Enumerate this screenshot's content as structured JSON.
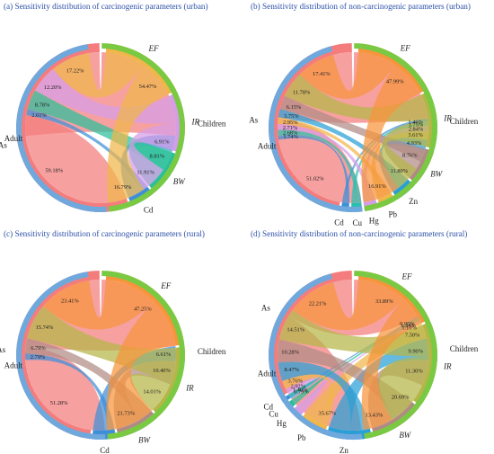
{
  "chart_data": [
    {
      "type": "chord",
      "title": "(a) Sensitivity distribution of carcinogenic parameters (urban)",
      "groups": [
        "Children",
        "Adult"
      ],
      "params": [
        {
          "name": "As",
          "italic": false,
          "color": "#f47c7c"
        },
        {
          "name": "Cd",
          "italic": false,
          "color": "#3d8fd8"
        },
        {
          "name": "BW",
          "italic": true,
          "color": "#2bbf9a"
        },
        {
          "name": "IR",
          "italic": true,
          "color": "#d59ce8"
        },
        {
          "name": "EF",
          "italic": true,
          "color": "#f0b64a"
        }
      ],
      "values": {
        "Children": [
          54.47,
          6.91,
          8.81,
          11.91,
          16.79
        ],
        "Adult": [
          59.18,
          2.61,
          8.78,
          12.2,
          17.22
        ]
      },
      "labels": {
        "Children": [
          "54.47%",
          "6.91%",
          "8.81%",
          "11.91%",
          "16.79%"
        ],
        "Adult": [
          "59.18%",
          "2.61%",
          "8.78%",
          "12.20%",
          "17.22%"
        ]
      }
    },
    {
      "type": "chord",
      "title": "(b) Sensitivity distribution of non-carcinogenic parameters (urban)",
      "groups": [
        "Children",
        "Adult"
      ],
      "params": [
        {
          "name": "As",
          "italic": false,
          "color": "#f47c7c"
        },
        {
          "name": "Cd",
          "italic": false,
          "color": "#3d8fd8"
        },
        {
          "name": "Cu",
          "italic": false,
          "color": "#2bbfb0"
        },
        {
          "name": "Hg",
          "italic": false,
          "color": "#d59ce8"
        },
        {
          "name": "Pb",
          "italic": false,
          "color": "#f0b64a"
        },
        {
          "name": "Zn",
          "italic": false,
          "color": "#2a9fd6"
        },
        {
          "name": "BW",
          "italic": true,
          "color": "#b08a84"
        },
        {
          "name": "IR",
          "italic": true,
          "color": "#b5b548"
        },
        {
          "name": "EF",
          "italic": true,
          "color": "#f7943c"
        }
      ],
      "values": {
        "Children": [
          47.99,
          1.46,
          1.75,
          2.84,
          3.61,
          4.93,
          8.76,
          11.8,
          16.91
        ],
        "Adult": [
          51.02,
          1.74,
          2.68,
          2.71,
          2.95,
          3.75,
          6.15,
          11.78,
          17.41
        ]
      },
      "labels": {
        "Children": [
          "47.99%",
          "1.46%",
          "1.75%",
          "2.84%",
          "3.61%",
          "4.93%",
          "8.76%",
          "11.80%",
          "16.91%"
        ],
        "Adult": [
          "51.02%",
          "1.74%",
          "2.68%",
          "2.71%",
          "2.95%",
          "3.75%",
          "6.15%",
          "11.78%",
          "17.41%"
        ]
      }
    },
    {
      "type": "chord",
      "title": "(c) Sensitivity distribution of carcinogenic parameters (rural)",
      "groups": [
        "Children",
        "Adult"
      ],
      "params": [
        {
          "name": "As",
          "italic": false,
          "color": "#f47c7c"
        },
        {
          "name": "Cd",
          "italic": false,
          "color": "#3d8fd8"
        },
        {
          "name": "BW",
          "italic": true,
          "color": "#b08a84"
        },
        {
          "name": "IR",
          "italic": true,
          "color": "#b5b548"
        },
        {
          "name": "EF",
          "italic": true,
          "color": "#f7943c"
        }
      ],
      "values": {
        "Children": [
          47.25,
          6.61,
          10.4,
          14.01,
          21.73
        ],
        "Adult": [
          51.28,
          2.79,
          6.79,
          15.74,
          23.41
        ]
      },
      "labels": {
        "Children": [
          "47.25%",
          "6.61%",
          "10.40%",
          "14.01%",
          "21.73%"
        ],
        "Adult": [
          "51.28%",
          "2.79%",
          "6.79%",
          "15.74%",
          "23.41%"
        ]
      }
    },
    {
      "type": "chord",
      "title": "(d) Sensitivity distribution of non-carcinogenic parameters (rural)",
      "groups": [
        "Children",
        "Adult"
      ],
      "params": [
        {
          "name": "As",
          "italic": false,
          "color": "#f47c7c"
        },
        {
          "name": "Cd",
          "italic": false,
          "color": "#3d8fd8"
        },
        {
          "name": "Cu",
          "italic": false,
          "color": "#2bbf9a"
        },
        {
          "name": "Hg",
          "italic": false,
          "color": "#d59ce8"
        },
        {
          "name": "Pb",
          "italic": false,
          "color": "#f0b64a"
        },
        {
          "name": "Zn",
          "italic": false,
          "color": "#2a9fd6"
        },
        {
          "name": "BW",
          "italic": true,
          "color": "#b08a84"
        },
        {
          "name": "IR",
          "italic": true,
          "color": "#b5b548"
        },
        {
          "name": "EF",
          "italic": true,
          "color": "#f7943c"
        }
      ],
      "values": {
        "Children": [
          33.89,
          0.95,
          1.24,
          1.1,
          7.5,
          9.9,
          11.3,
          20.69,
          13.43
        ],
        "Adult": [
          35.67,
          0.79,
          1.4,
          2.92,
          3.76,
          8.47,
          10.28,
          14.51,
          22.21
        ]
      },
      "labels": {
        "Children": [
          "33.89%",
          "0.95%",
          "1.24%",
          "1.10%",
          "7.50%",
          "9.90%",
          "11.30%",
          "20.69%",
          "13.43%"
        ],
        "Adult": [
          "35.67%",
          "0.79%",
          "1.40%",
          "2.92%",
          "3.76%",
          "8.47%",
          "10.28%",
          "14.51%",
          "22.21%"
        ]
      }
    }
  ],
  "colors": {
    "children": "#7ac943",
    "adult": "#6fa8dc",
    "title": "#2b4fa8"
  }
}
